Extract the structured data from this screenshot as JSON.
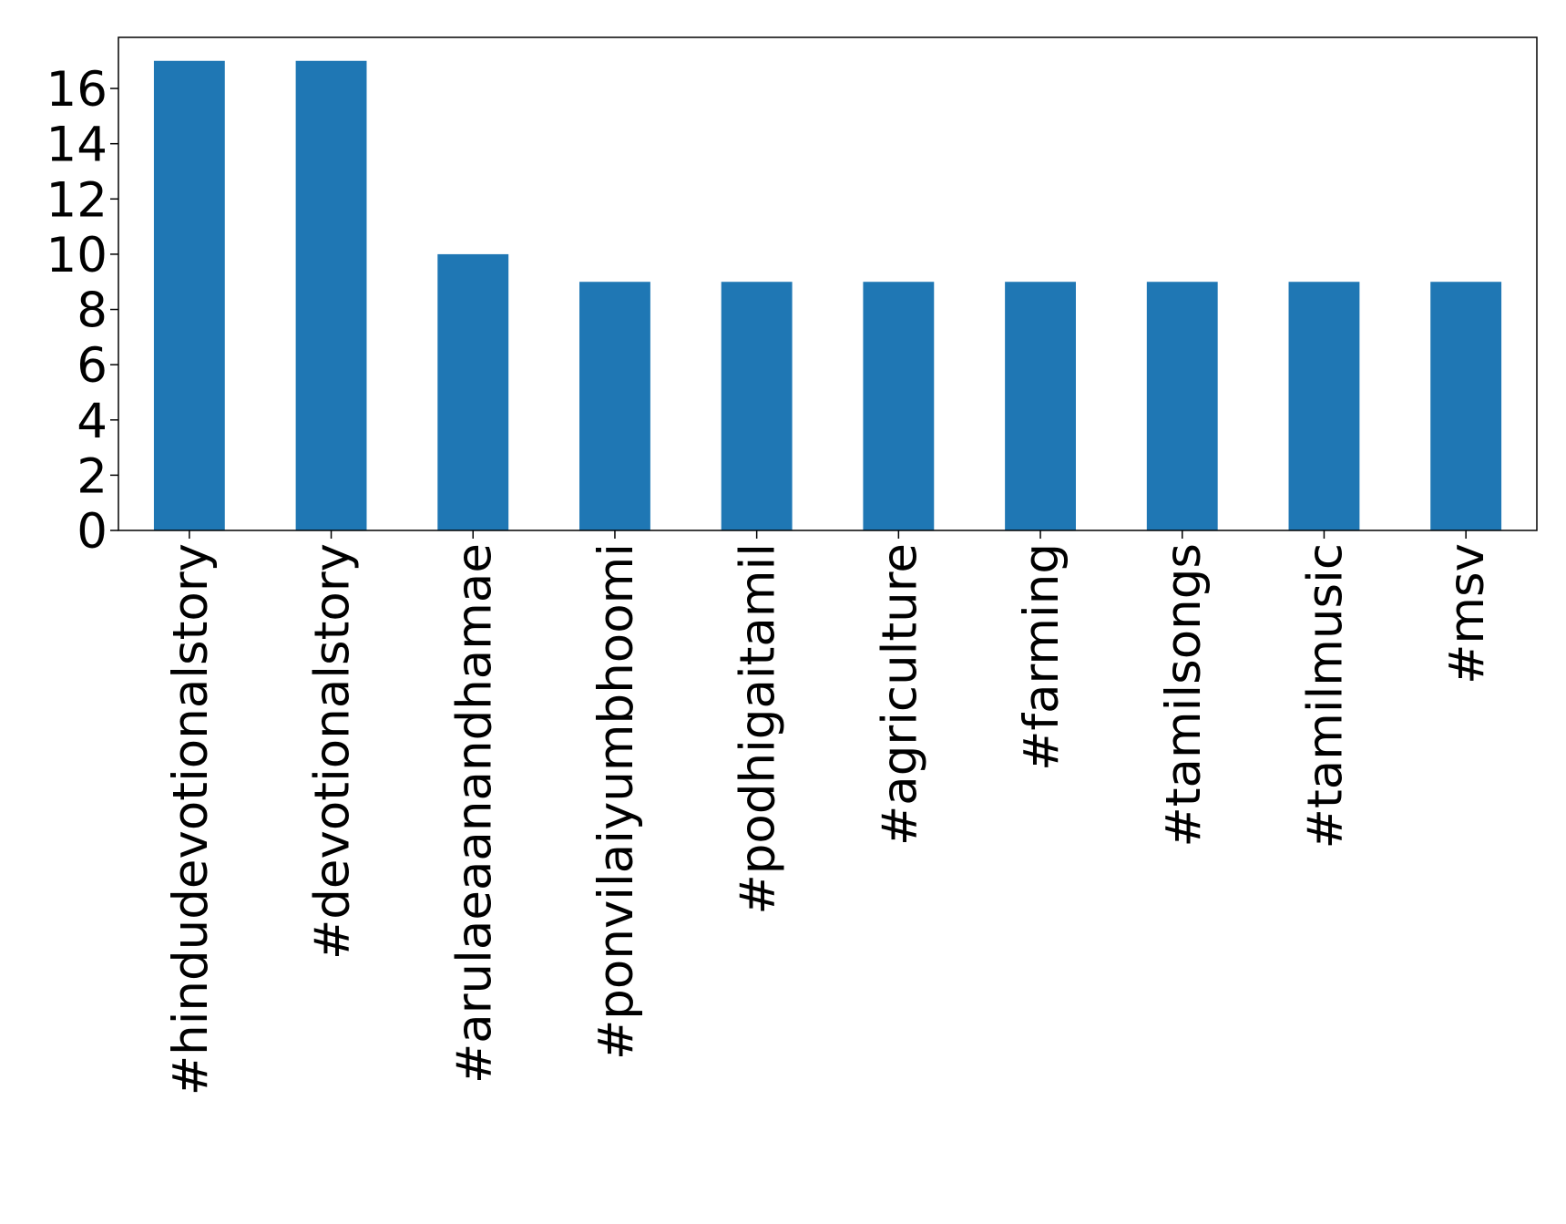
{
  "chart_data": {
    "type": "bar",
    "categories": [
      "#hindudevotionalstory",
      "#devotionalstory",
      "#arulaeaanandhamae",
      "#ponvilaiyumbhoomi",
      "#podhigaitamil",
      "#agriculture",
      "#farming",
      "#tamilsongs",
      "#tamilmusic",
      "#msv"
    ],
    "values": [
      17,
      17,
      10,
      9,
      9,
      9,
      9,
      9,
      9,
      9
    ],
    "color": "#1f77b4",
    "ylim": [
      0,
      17.85
    ],
    "yticks": [
      0,
      2,
      4,
      6,
      8,
      10,
      12,
      14,
      16
    ],
    "grid": false
  }
}
